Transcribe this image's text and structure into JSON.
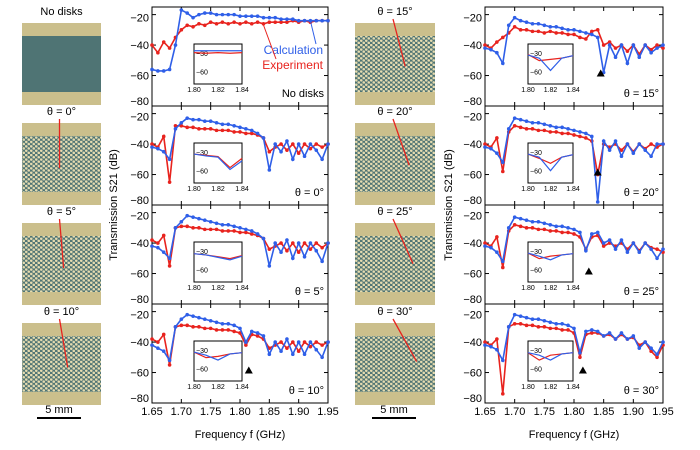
{
  "figure": {
    "scale_bar_label": "5 mm",
    "xlabel": "Frequency f (GHz)",
    "ylabel": "Transmission S21 (dB)",
    "colors": {
      "calculation": "#2f5fe8",
      "experiment": "#e8231e",
      "photo_frame": "#cbbf8c",
      "photo_band": "#4f7474",
      "disk": "#e6dcb0",
      "marker": "#000000"
    }
  },
  "photos": [
    {
      "label": "No disks",
      "angle": null
    },
    {
      "label": "θ = 0°",
      "angle": 0
    },
    {
      "label": "θ = 5°",
      "angle": 5
    },
    {
      "label": "θ = 10°",
      "angle": 10
    },
    {
      "label": "θ = 15°",
      "angle": 15
    },
    {
      "label": "θ = 20°",
      "angle": 20
    },
    {
      "label": "θ = 25°",
      "angle": 25
    },
    {
      "label": "θ = 30°",
      "angle": 30
    }
  ],
  "chart_data": {
    "type": "line",
    "x": [
      1.65,
      1.66,
      1.67,
      1.68,
      1.69,
      1.7,
      1.71,
      1.72,
      1.73,
      1.74,
      1.75,
      1.76,
      1.77,
      1.78,
      1.79,
      1.8,
      1.81,
      1.82,
      1.83,
      1.84,
      1.85,
      1.86,
      1.87,
      1.88,
      1.89,
      1.9,
      1.91,
      1.92,
      1.93,
      1.94,
      1.95
    ],
    "xlim": [
      1.65,
      1.95
    ],
    "ylim": [
      -80,
      -15
    ],
    "xticks": [
      1.65,
      1.7,
      1.75,
      1.8,
      1.85,
      1.9,
      1.95
    ],
    "yticks": [
      -20,
      -40,
      -60,
      -80
    ],
    "legend": {
      "calculation": "Calculation",
      "experiment": "Experiment"
    },
    "inset": {
      "x": [
        1.8,
        1.81,
        1.82,
        1.83,
        1.84
      ],
      "xticks": [
        "1.80",
        "1.82",
        "1.84"
      ],
      "yticks": [
        -30,
        -60
      ],
      "xlim": [
        1.8,
        1.84
      ],
      "ylim": [
        -80,
        -15
      ]
    },
    "panels": [
      {
        "label": "No disks",
        "marker": null,
        "calc": [
          -56,
          -57,
          -57,
          -56,
          -40,
          -17,
          -19,
          -22,
          -20,
          -19,
          -19,
          -20,
          -20,
          -20,
          -20,
          -21,
          -21,
          -21,
          -21,
          -22,
          -22,
          -22,
          -23,
          -23,
          -23,
          -24,
          -24,
          -24,
          -24,
          -24,
          -24
        ],
        "exp": [
          -40,
          -45,
          -38,
          -42,
          -35,
          -30,
          -27,
          -28,
          -26,
          -27,
          -25,
          -26,
          -25,
          -26,
          -25,
          -26,
          -25,
          -26,
          -25,
          -26,
          -25,
          -25,
          -25,
          -25,
          -24,
          -25,
          -24,
          -25,
          -24,
          -24,
          -24
        ],
        "inset_calc": [
          -26,
          -26,
          -26,
          -26,
          -26
        ],
        "inset_exp": [
          -29,
          -30,
          -29,
          -30,
          -29
        ]
      },
      {
        "label": "θ = 0°",
        "marker": null,
        "calc": [
          -42,
          -43,
          -45,
          -50,
          -30,
          -26,
          -23,
          -24,
          -24,
          -25,
          -25,
          -26,
          -27,
          -27,
          -28,
          -29,
          -30,
          -31,
          -33,
          -36,
          -57,
          -40,
          -45,
          -38,
          -50,
          -40,
          -48,
          -40,
          -44,
          -50,
          -40
        ],
        "exp": [
          -40,
          -42,
          -35,
          -65,
          -28,
          -28,
          -29,
          -29,
          -30,
          -30,
          -30,
          -31,
          -31,
          -31,
          -32,
          -32,
          -33,
          -33,
          -34,
          -36,
          -45,
          -42,
          -40,
          -44,
          -40,
          -46,
          -40,
          -43,
          -40,
          -42,
          -40
        ],
        "inset_calc": [
          -33,
          -36,
          -38,
          -58,
          -44
        ],
        "inset_exp": [
          -33,
          -35,
          -37,
          -55,
          -40
        ]
      },
      {
        "label": "θ = 5°",
        "marker": null,
        "calc": [
          -42,
          -43,
          -46,
          -50,
          -30,
          -26,
          -22,
          -23,
          -24,
          -25,
          -26,
          -27,
          -28,
          -28,
          -29,
          -30,
          -31,
          -32,
          -34,
          -37,
          -55,
          -40,
          -46,
          -38,
          -50,
          -40,
          -49,
          -40,
          -45,
          -52,
          -40
        ],
        "exp": [
          -38,
          -40,
          -35,
          -55,
          -30,
          -29,
          -29,
          -30,
          -30,
          -31,
          -31,
          -31,
          -32,
          -32,
          -32,
          -33,
          -33,
          -34,
          -35,
          -37,
          -44,
          -42,
          -40,
          -45,
          -40,
          -46,
          -40,
          -44,
          -40,
          -43,
          -40
        ],
        "inset_calc": [
          -34,
          -36,
          -40,
          -44,
          -38
        ],
        "inset_exp": [
          -34,
          -36,
          -39,
          -42,
          -37
        ]
      },
      {
        "label": "θ = 10°",
        "marker": 1.815,
        "calc": [
          -42,
          -44,
          -46,
          -52,
          -30,
          -25,
          -22,
          -23,
          -24,
          -25,
          -26,
          -27,
          -28,
          -28,
          -29,
          -31,
          -40,
          -33,
          -34,
          -36,
          -48,
          -40,
          -46,
          -38,
          -48,
          -40,
          -48,
          -40,
          -45,
          -50,
          -40
        ],
        "exp": [
          -38,
          -40,
          -35,
          -55,
          -30,
          -29,
          -29,
          -30,
          -30,
          -31,
          -31,
          -32,
          -32,
          -32,
          -33,
          -34,
          -42,
          -35,
          -36,
          -38,
          -44,
          -42,
          -40,
          -44,
          -40,
          -46,
          -40,
          -43,
          -40,
          -42,
          -40
        ],
        "inset_calc": [
          -33,
          -38,
          -46,
          -36,
          -34
        ],
        "inset_exp": [
          -33,
          -42,
          -40,
          -36,
          -34
        ]
      },
      {
        "label": "θ = 15°",
        "marker": 1.845,
        "calc": [
          -42,
          -43,
          -45,
          -52,
          -27,
          -22,
          -24,
          -25,
          -26,
          -26,
          -27,
          -28,
          -28,
          -29,
          -30,
          -30,
          -31,
          -32,
          -33,
          -35,
          -58,
          -40,
          -48,
          -40,
          -52,
          -40,
          -48,
          -40,
          -45,
          -42,
          -40
        ],
        "exp": [
          -40,
          -42,
          -38,
          -35,
          -32,
          -28,
          -30,
          -30,
          -31,
          -31,
          -32,
          -31,
          -32,
          -32,
          -33,
          -33,
          -35,
          -36,
          -31,
          -30,
          -40,
          -38,
          -42,
          -40,
          -44,
          -40,
          -46,
          -40,
          -43,
          -40,
          -42
        ],
        "inset_calc": [
          -33,
          -38,
          -58,
          -38,
          -34
        ],
        "inset_exp": [
          -32,
          -42,
          -40,
          -38,
          -34
        ]
      },
      {
        "label": "θ = 20°",
        "marker": 1.84,
        "calc": [
          -42,
          -43,
          -46,
          -52,
          -30,
          -23,
          -24,
          -25,
          -26,
          -26,
          -27,
          -28,
          -29,
          -29,
          -30,
          -31,
          -32,
          -33,
          -35,
          -78,
          -38,
          -44,
          -38,
          -48,
          -40,
          -46,
          -40,
          -44,
          -48,
          -40,
          -40
        ],
        "exp": [
          -40,
          -42,
          -36,
          -58,
          -32,
          -28,
          -29,
          -30,
          -30,
          -31,
          -31,
          -32,
          -32,
          -33,
          -33,
          -34,
          -35,
          -36,
          -38,
          -60,
          -40,
          -42,
          -40,
          -44,
          -40,
          -45,
          -40,
          -43,
          -40,
          -42,
          -40
        ],
        "inset_calc": [
          -33,
          -38,
          -60,
          -38,
          -34
        ],
        "inset_exp": [
          -33,
          -40,
          -48,
          -38,
          -34
        ]
      },
      {
        "label": "θ = 25°",
        "marker": 1.825,
        "calc": [
          -42,
          -43,
          -46,
          -52,
          -30,
          -23,
          -24,
          -25,
          -26,
          -26,
          -27,
          -28,
          -29,
          -29,
          -30,
          -31,
          -33,
          -45,
          -34,
          -33,
          -40,
          -38,
          -44,
          -38,
          -46,
          -40,
          -46,
          -40,
          -44,
          -50,
          -44
        ],
        "exp": [
          -40,
          -42,
          -36,
          -56,
          -32,
          -28,
          -29,
          -30,
          -30,
          -31,
          -31,
          -32,
          -32,
          -33,
          -33,
          -34,
          -36,
          -44,
          -36,
          -35,
          -42,
          -40,
          -42,
          -40,
          -44,
          -40,
          -45,
          -40,
          -43,
          -44,
          -46
        ],
        "inset_calc": [
          -33,
          -38,
          -44,
          -36,
          -34
        ],
        "inset_exp": [
          -33,
          -42,
          -38,
          -36,
          -34
        ]
      },
      {
        "label": "θ = 30°",
        "marker": 1.815,
        "calc": [
          -42,
          -43,
          -45,
          -52,
          -30,
          -22,
          -23,
          -24,
          -25,
          -25,
          -26,
          -27,
          -28,
          -28,
          -29,
          -31,
          -47,
          -33,
          -32,
          -33,
          -36,
          -34,
          -38,
          -34,
          -38,
          -36,
          -44,
          -40,
          -44,
          -48,
          -40
        ],
        "exp": [
          -40,
          -42,
          -38,
          -74,
          -30,
          -28,
          -28,
          -29,
          -29,
          -30,
          -30,
          -31,
          -31,
          -32,
          -32,
          -34,
          -50,
          -35,
          -34,
          -34,
          -36,
          -35,
          -38,
          -35,
          -38,
          -37,
          -42,
          -40,
          -46,
          -50,
          -42
        ],
        "inset_calc": [
          -34,
          -38,
          -46,
          -36,
          -34
        ],
        "inset_exp": [
          -34,
          -46,
          -38,
          -36,
          -34
        ]
      }
    ]
  }
}
